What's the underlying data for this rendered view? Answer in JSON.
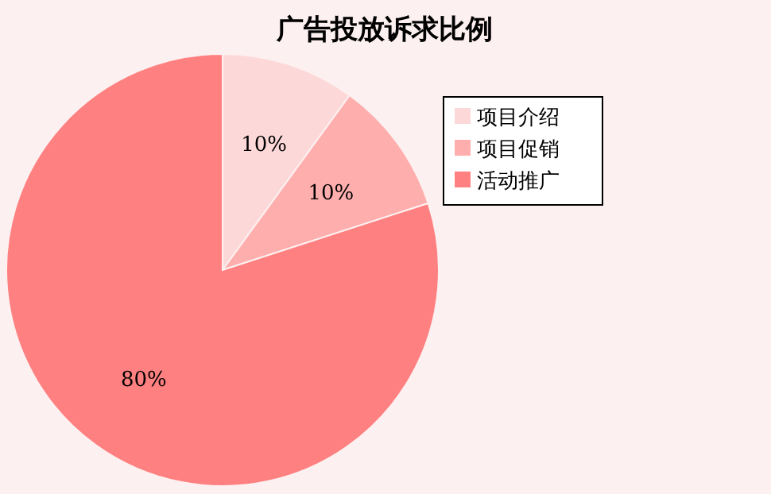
{
  "chart_data": {
    "type": "pie",
    "title": "广告投放诉求比例",
    "categories": [
      "项目介绍",
      "项目促销",
      "活动推广"
    ],
    "values": [
      10,
      10,
      80
    ],
    "value_labels": [
      "10%",
      "10%",
      "80%"
    ],
    "colors": [
      "#fdd8d8",
      "#ffaeae",
      "#ff8080"
    ],
    "legend": "right"
  }
}
